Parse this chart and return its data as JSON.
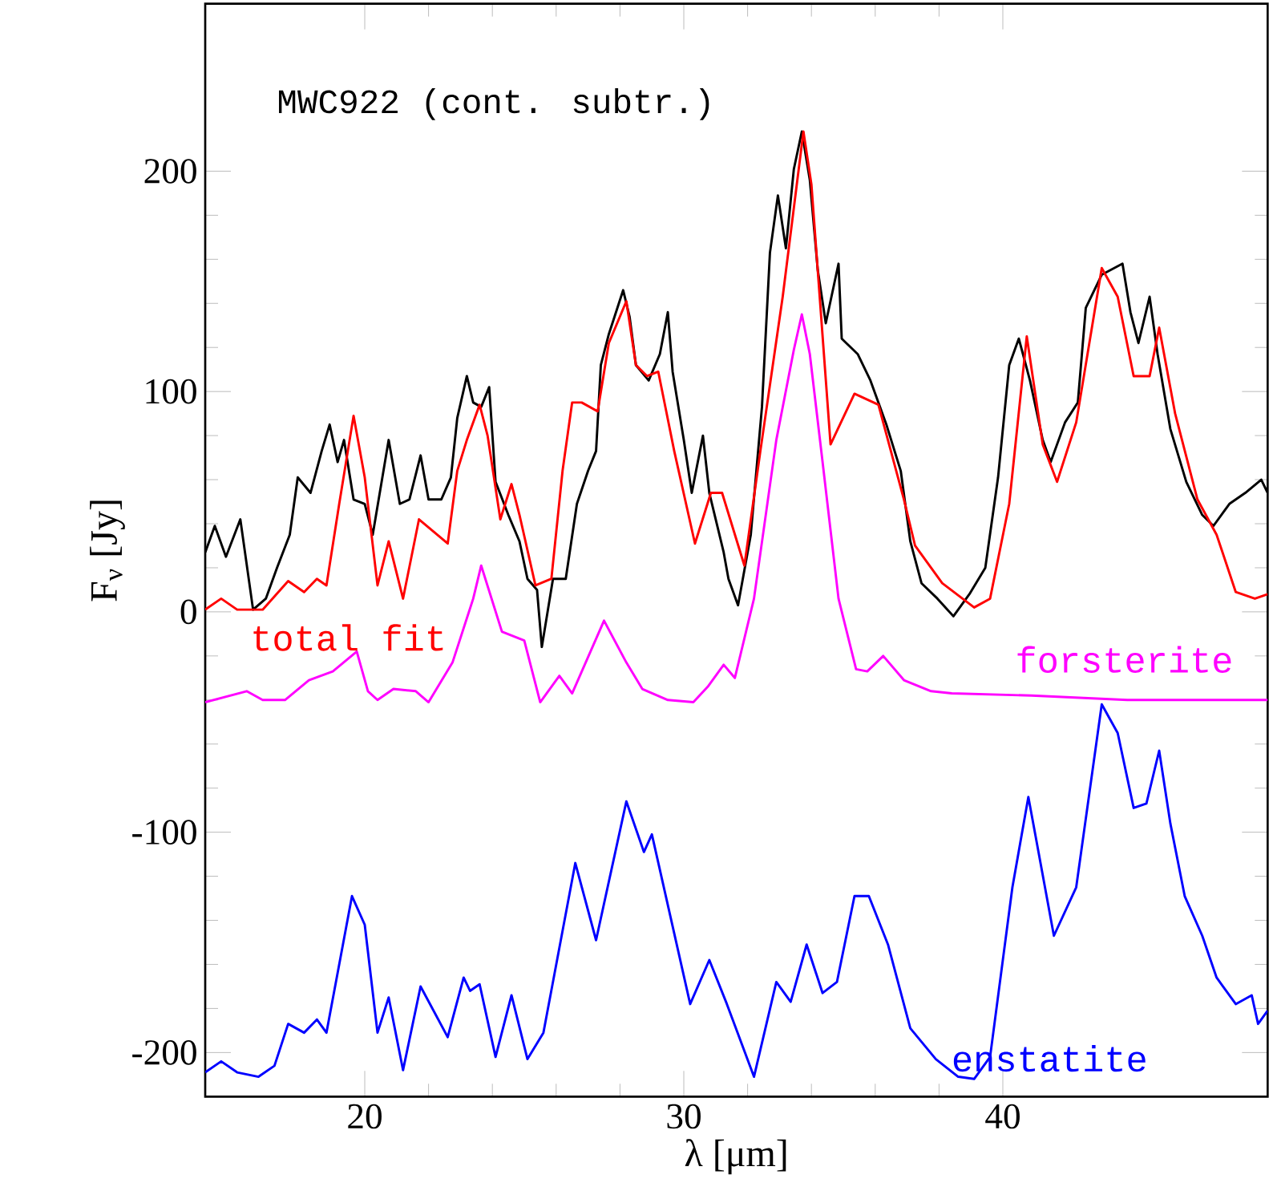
{
  "chart_data": {
    "type": "line",
    "xlabel": "λ [μm]",
    "ylabel": "F$_{ν}$ [Jy]",
    "xlim": [
      15,
      48.3
    ],
    "ylim": [
      -220,
      276
    ],
    "xticks": [
      20,
      30,
      40
    ],
    "yticks": [
      -200,
      -100,
      0,
      100,
      200
    ],
    "annotations": [
      "MWC922 (cont. subtr.)"
    ],
    "series": [
      {
        "color": "#000000",
        "x": [
          15.0,
          15.3,
          15.65,
          16.1,
          16.5,
          16.9,
          17.25,
          17.65,
          17.9,
          18.3,
          18.65,
          18.9,
          19.15,
          19.35,
          19.65,
          20.0,
          20.25,
          20.75,
          21.1,
          21.4,
          21.75,
          22.0,
          22.4,
          22.7,
          22.9,
          23.2,
          23.4,
          23.65,
          23.9,
          24.1,
          24.5,
          24.85,
          25.1,
          25.4,
          25.55,
          25.9,
          26.3,
          26.65,
          27.0,
          27.25,
          27.4,
          27.65,
          28.1,
          28.3,
          28.5,
          28.9,
          29.25,
          29.5,
          29.65,
          30.0,
          30.25,
          30.6,
          30.8,
          31.25,
          31.4,
          31.7,
          32.1,
          32.45,
          32.7,
          32.95,
          33.2,
          33.45,
          33.7,
          33.95,
          34.2,
          34.45,
          34.85,
          34.95,
          35.45,
          35.85,
          36.35,
          36.8,
          37.1,
          37.45,
          37.95,
          38.45,
          38.95,
          39.45,
          39.85,
          40.2,
          40.5,
          40.85,
          41.25,
          41.5,
          41.95,
          42.35,
          42.6,
          43.1,
          43.75,
          44.0,
          44.25,
          44.6,
          44.85,
          45.25,
          45.75,
          46.25,
          46.6,
          47.1,
          47.6,
          48.1,
          48.3
        ],
        "values": [
          27,
          39,
          25,
          42,
          1,
          6,
          20,
          35,
          61,
          54,
          73,
          85,
          68,
          78,
          51,
          49,
          35,
          78,
          49,
          51,
          71,
          51,
          51,
          61,
          88,
          107,
          95,
          93,
          102,
          59,
          44,
          32,
          15,
          10,
          -16,
          15,
          15,
          49,
          64,
          73,
          112,
          126,
          146,
          134,
          112,
          105,
          117,
          136,
          109,
          78,
          54,
          80,
          54,
          27,
          15,
          3,
          35,
          93,
          163,
          189,
          165,
          201,
          218,
          196,
          155,
          131,
          158,
          124,
          117,
          105,
          85,
          64,
          32,
          13,
          6,
          -2,
          8,
          20,
          61,
          112,
          124,
          105,
          78,
          68,
          86,
          95,
          138,
          153,
          158,
          136,
          122,
          143,
          117,
          83,
          59,
          44,
          39,
          49,
          54,
          60,
          54
        ]
      },
      {
        "name": "total fit",
        "color": "#ff0000",
        "x": [
          15.0,
          15.5,
          16.0,
          16.8,
          17.6,
          18.1,
          18.5,
          18.8,
          19.2,
          19.65,
          20.0,
          20.4,
          20.75,
          21.2,
          21.7,
          22.6,
          22.9,
          23.2,
          23.6,
          23.85,
          24.25,
          24.6,
          24.85,
          25.35,
          25.85,
          26.2,
          26.5,
          26.8,
          27.3,
          27.65,
          28.2,
          28.5,
          28.85,
          29.2,
          29.7,
          30.35,
          30.85,
          31.2,
          31.9,
          32.4,
          33.1,
          33.75,
          34.0,
          34.6,
          35.35,
          36.1,
          36.9,
          37.25,
          38.1,
          39.1,
          39.6,
          40.2,
          40.75,
          41.25,
          41.7,
          42.3,
          43.1,
          43.6,
          44.1,
          44.6,
          44.9,
          45.4,
          46.1,
          46.7,
          47.3,
          47.9,
          48.3
        ],
        "values": [
          1,
          6,
          1,
          1,
          14,
          9,
          15,
          12,
          49,
          89,
          61,
          12,
          32,
          6,
          42,
          31,
          64,
          78,
          94,
          80,
          42,
          58,
          44,
          12,
          15,
          64,
          95,
          95,
          91,
          122,
          141,
          112,
          107,
          109,
          73,
          31,
          54,
          54,
          21,
          73,
          143,
          218,
          194,
          76,
          99,
          94,
          51,
          30,
          13,
          2,
          6,
          49,
          125,
          76,
          59,
          86,
          156,
          143,
          107,
          107,
          129,
          90,
          51,
          35,
          9,
          6,
          8
        ]
      },
      {
        "name": "forsterite",
        "color": "#ff00ff",
        "x": [
          15.0,
          16.3,
          16.8,
          17.5,
          18.25,
          19.0,
          19.75,
          20.1,
          20.4,
          20.9,
          21.6,
          22.0,
          22.75,
          23.4,
          23.65,
          24.3,
          25.0,
          25.5,
          26.1,
          26.5,
          27.5,
          28.2,
          28.7,
          29.5,
          30.3,
          30.75,
          31.25,
          31.6,
          32.2,
          32.9,
          33.45,
          33.7,
          33.95,
          34.35,
          34.85,
          35.4,
          35.75,
          36.25,
          36.9,
          37.75,
          38.4,
          40.9,
          43.9,
          48.3
        ],
        "values": [
          -41,
          -36,
          -40,
          -40,
          -31,
          -27,
          -18,
          -36,
          -40,
          -35,
          -36,
          -41,
          -23,
          6,
          21,
          -9,
          -13,
          -41,
          -29,
          -37,
          -4,
          -23,
          -35,
          -40,
          -41,
          -34,
          -24,
          -30,
          6,
          78,
          119,
          135,
          117,
          68,
          6,
          -26,
          -27,
          -20,
          -31,
          -36,
          -37,
          -38,
          -40,
          -40
        ]
      },
      {
        "name": "enstatite",
        "color": "#0000ff",
        "x": [
          15.0,
          15.5,
          16.0,
          16.67,
          17.17,
          17.6,
          18.1,
          18.5,
          18.8,
          19.6,
          20.0,
          20.4,
          20.75,
          21.2,
          21.75,
          22.6,
          23.1,
          23.3,
          23.6,
          24.1,
          24.6,
          25.1,
          25.6,
          26.6,
          27.25,
          28.2,
          28.75,
          29.0,
          30.2,
          30.8,
          31.35,
          32.2,
          32.9,
          33.35,
          33.85,
          34.35,
          34.8,
          35.35,
          35.8,
          36.4,
          37.1,
          37.9,
          38.6,
          39.1,
          39.6,
          40.3,
          40.8,
          41.6,
          42.3,
          43.1,
          43.6,
          44.1,
          44.5,
          44.9,
          45.25,
          45.7,
          46.25,
          46.7,
          47.3,
          47.8,
          48.0,
          48.3
        ],
        "values": [
          -209,
          -204,
          -209,
          -211,
          -206,
          -187,
          -191,
          -185,
          -191,
          -129,
          -142,
          -191,
          -175,
          -208,
          -170,
          -193,
          -166,
          -172,
          -169,
          -202,
          -174,
          -203,
          -191,
          -114,
          -149,
          -86,
          -109,
          -101,
          -178,
          -158,
          -178,
          -211,
          -168,
          -177,
          -151,
          -173,
          -168,
          -129,
          -129,
          -151,
          -189,
          -203,
          -211,
          -212,
          -202,
          -125,
          -84,
          -147,
          -125,
          -42,
          -55,
          -89,
          -87,
          -63,
          -96,
          -129,
          -147,
          -166,
          -178,
          -174,
          -187,
          -181
        ]
      }
    ]
  }
}
